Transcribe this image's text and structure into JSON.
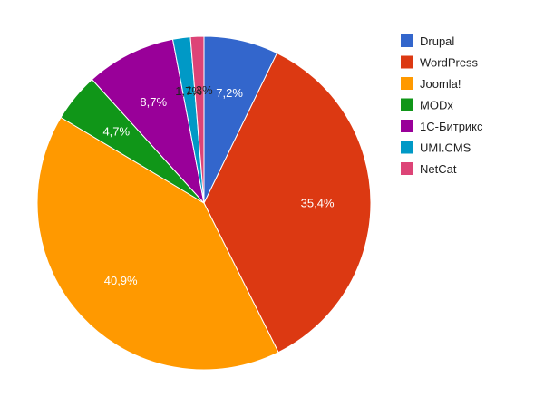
{
  "chart_data": {
    "type": "pie",
    "legend_position": "right",
    "slices": [
      {
        "name": "Drupal",
        "value": 7.2,
        "label": "7,2%",
        "color": "#3366cc",
        "label_color": "#ffffff"
      },
      {
        "name": "WordPress",
        "value": 35.4,
        "label": "35,4%",
        "color": "#dc3912",
        "label_color": "#ffffff"
      },
      {
        "name": "Joomla!",
        "value": 40.9,
        "label": "40,9%",
        "color": "#ff9900",
        "label_color": "#ffffff"
      },
      {
        "name": "MODx",
        "value": 4.7,
        "label": "4,7%",
        "color": "#109618",
        "label_color": "#ffffff"
      },
      {
        "name": "1С-Битрикс",
        "value": 8.7,
        "label": "8,7%",
        "color": "#990099",
        "label_color": "#ffffff"
      },
      {
        "name": "UMI.CMS",
        "value": 1.7,
        "label": "1,7%",
        "color": "#0099c6",
        "label_color": "#222222"
      },
      {
        "name": "NetCat",
        "value": 1.3,
        "label": "1,3%",
        "color": "#dd4477",
        "label_color": "#222222"
      }
    ]
  }
}
